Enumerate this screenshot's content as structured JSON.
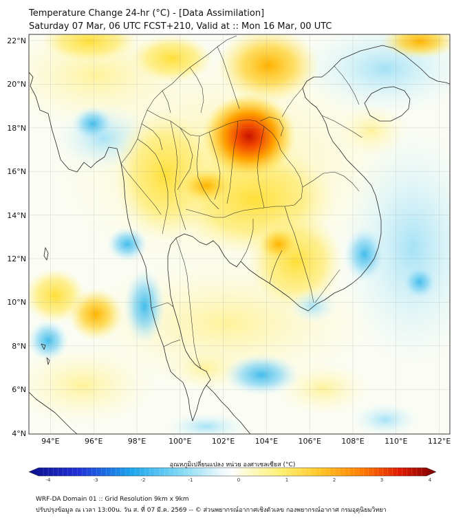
{
  "header": {
    "title": "Temperature Change 24-hr (°C) - [Data Assimilation]",
    "subtitle": "Saturday 07 Mar, 06 UTC FCST+210, Valid at :: Mon 16 Mar, 00 UTC"
  },
  "map": {
    "lat_range": [
      4,
      22
    ],
    "lon_range": [
      93,
      112.5
    ],
    "lat_labels": [
      "22°N",
      "20°N",
      "18°N",
      "16°N",
      "14°N",
      "12°N",
      "10°N",
      "8°N",
      "6°N",
      "4°N"
    ],
    "lon_labels": [
      "94°E",
      "96°E",
      "98°E",
      "100°E",
      "102°E",
      "104°E",
      "106°E",
      "108°E",
      "110°E",
      "112°E"
    ],
    "colors": {
      "warm_max": "#d62000",
      "warm": "#ff9a00",
      "mild_warm": "#fff06a",
      "neutral": "#ffffff",
      "mild_cool": "#d4f2fb",
      "cool": "#4fc3ee",
      "border": "#222222"
    }
  },
  "colorbar": {
    "title": "อุณหภูมิเปลี่ยนแปลง หน่วย องศาเซลเซียส (°C)",
    "ticks": [
      "-4",
      "-3",
      "-2",
      "-1",
      "0",
      "1",
      "2",
      "3",
      "4"
    ],
    "range": [
      -4,
      4
    ]
  },
  "footer": {
    "line1": "WRF-DA Domain 01 :: Grid Resolution 9km x 9km",
    "line2": "ปรับปรุงข้อมูล ณ เวลา 13:00น. วัน ส. ที่ 07 มี.ค. 2569 -- © ส่วนพยากรณ์อากาศเชิงตัวเลข กองพยากรณ์อากาศ กรมอุตุนิยมวิทยา"
  }
}
